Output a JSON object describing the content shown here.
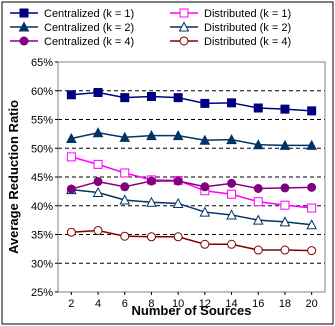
{
  "chart_data": {
    "type": "line",
    "title": "",
    "xlabel": "Number of Sources",
    "ylabel": "Average Reduction Ratio",
    "x": [
      2,
      4,
      6,
      8,
      10,
      12,
      14,
      16,
      18,
      20
    ],
    "xlim": [
      1,
      21
    ],
    "ylim": [
      25,
      65
    ],
    "y_ticks": [
      "25%",
      "30%",
      "35%",
      "40%",
      "45%",
      "50%",
      "55%",
      "60%",
      "65%"
    ],
    "grid": "horizontal dashed",
    "legend_position": "top",
    "series": [
      {
        "name": "Centralized (k = 1)",
        "color": "#000080",
        "marker": "square",
        "filled": true,
        "values": [
          59.3,
          59.7,
          58.8,
          59.0,
          58.8,
          57.8,
          57.9,
          57.0,
          56.8,
          56.5
        ]
      },
      {
        "name": "Distributed (k = 1)",
        "color": "#ff00ff",
        "marker": "square",
        "filled": false,
        "values": [
          48.5,
          47.2,
          45.7,
          44.5,
          44.4,
          42.6,
          42.0,
          40.7,
          40.1,
          39.6
        ]
      },
      {
        "name": "Centralized (k = 2)",
        "color": "#003366",
        "marker": "triangle",
        "filled": true,
        "values": [
          51.7,
          52.7,
          51.9,
          52.2,
          52.2,
          51.4,
          51.5,
          50.6,
          50.5,
          50.5
        ]
      },
      {
        "name": "Distributed (k = 2)",
        "color": "#003366",
        "marker": "triangle",
        "filled": false,
        "values": [
          42.8,
          42.3,
          41.0,
          40.6,
          40.4,
          38.9,
          38.4,
          37.5,
          37.2,
          36.7
        ]
      },
      {
        "name": "Centralized (k = 4)",
        "color": "#800080",
        "marker": "circle",
        "filled": true,
        "values": [
          42.9,
          44.2,
          43.3,
          44.3,
          44.3,
          43.3,
          43.9,
          43.0,
          43.1,
          43.2
        ]
      },
      {
        "name": "Distributed (k = 4)",
        "color": "#800000",
        "marker": "circle",
        "filled": false,
        "values": [
          35.4,
          35.7,
          34.7,
          34.6,
          34.6,
          33.3,
          33.3,
          32.3,
          32.3,
          32.2
        ]
      }
    ]
  }
}
